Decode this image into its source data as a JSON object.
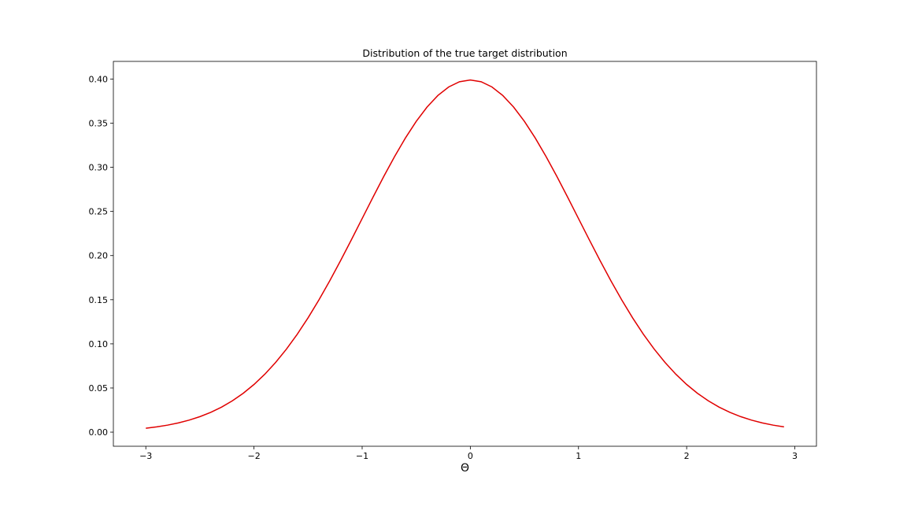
{
  "chart_data": {
    "type": "line",
    "title": "Distribution of the true target distribution",
    "xlabel": "Θ",
    "ylabel": "",
    "xlim": [
      -3.3,
      3.2
    ],
    "ylim": [
      -0.016,
      0.42
    ],
    "grid": false,
    "legend": "none",
    "x_ticks": [
      -3,
      -2,
      -1,
      0,
      1,
      2,
      3
    ],
    "x_tick_labels": [
      "−3",
      "−2",
      "−1",
      "0",
      "1",
      "2",
      "3"
    ],
    "y_ticks": [
      0.0,
      0.05,
      0.1,
      0.15,
      0.2,
      0.25,
      0.3,
      0.35,
      0.4
    ],
    "y_tick_labels": [
      "0.00",
      "0.05",
      "0.10",
      "0.15",
      "0.20",
      "0.25",
      "0.30",
      "0.35",
      "0.40"
    ],
    "series": [
      {
        "color": "#e00000",
        "distribution": "standard normal pdf",
        "x_start": -3.0,
        "x_end": 2.9,
        "x_step": 0.1
      }
    ]
  }
}
